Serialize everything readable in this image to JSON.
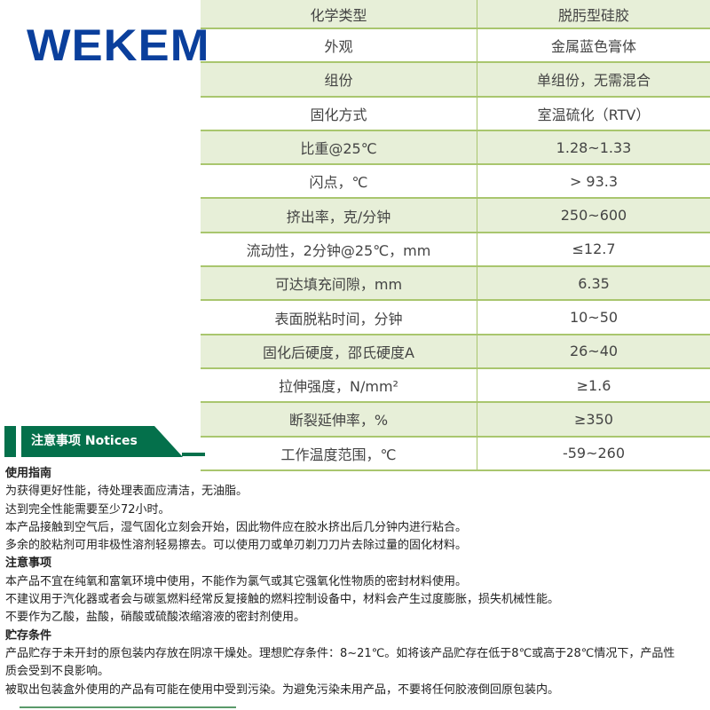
{
  "logo": "WEKEM",
  "colors": {
    "brand_blue": "#0a3f9c",
    "green": "#04704b",
    "row_green": "#e7efd8",
    "border": "#a9c66e"
  },
  "specs": [
    {
      "k": "化学类型",
      "v": "脱肟型硅胶"
    },
    {
      "k": "外观",
      "v": "金属蓝色膏体"
    },
    {
      "k": "组份",
      "v": "单组份，无需混合"
    },
    {
      "k": "固化方式",
      "v": "室温硫化（RTV）"
    },
    {
      "k": "比重@25℃",
      "v": "1.28~1.33"
    },
    {
      "k": "闪点，℃",
      "v": "> 93.3"
    },
    {
      "k": "挤出率，克/分钟",
      "v": "250~600"
    },
    {
      "k": "流动性，2分钟@25℃，mm",
      "v": "≤12.7"
    },
    {
      "k": "可达填充间隙，mm",
      "v": "6.35"
    },
    {
      "k": "表面脱粘时间，分钟",
      "v": "10~50"
    },
    {
      "k": "固化后硬度，邵氏硬度A",
      "v": "26~40"
    },
    {
      "k": "拉伸强度，N/mm²",
      "v": "≥1.6"
    },
    {
      "k": "断裂延伸率，%",
      "v": "≥350"
    },
    {
      "k": "工作温度范围，℃",
      "v": "-59~260"
    }
  ],
  "notices_title": "注意事项 Notices",
  "sections": [
    {
      "h": "使用指南",
      "lines": [
        "为获得更好性能，待处理表面应清洁，无油脂。",
        "达到完全性能需要至少72小时。",
        "本产品接触到空气后，湿气固化立刻会开始，因此物件应在胶水挤出后几分钟内进行粘合。",
        "多余的胶粘剂可用非极性溶剂轻易擦去。可以使用刀或单刃剃刀刀片去除过量的固化材料。"
      ]
    },
    {
      "h": "注意事项",
      "lines": [
        "本产品不宜在纯氧和富氧环境中使用，不能作为氯气或其它强氧化性物质的密封材料使用。",
        "不建议用于汽化器或者会与碳氢燃料经常反复接触的燃料控制设备中，材料会产生过度膨胀，损失机械性能。",
        "不要作为乙酸，盐酸，硝酸或硫酸浓缩溶液的密封剂使用。"
      ]
    },
    {
      "h": "贮存条件",
      "lines": [
        "产品贮存于未开封的原包装内存放在阴凉干燥处。理想贮存条件：8~21℃。如将该产品贮存在低于8℃或高于28℃情况下，产品性",
        "质会受到不良影响。",
        "被取出包装盒外使用的产品有可能在使用中受到污染。为避免污染未用产品，不要将任何胶液倒回原包装内。"
      ]
    }
  ]
}
